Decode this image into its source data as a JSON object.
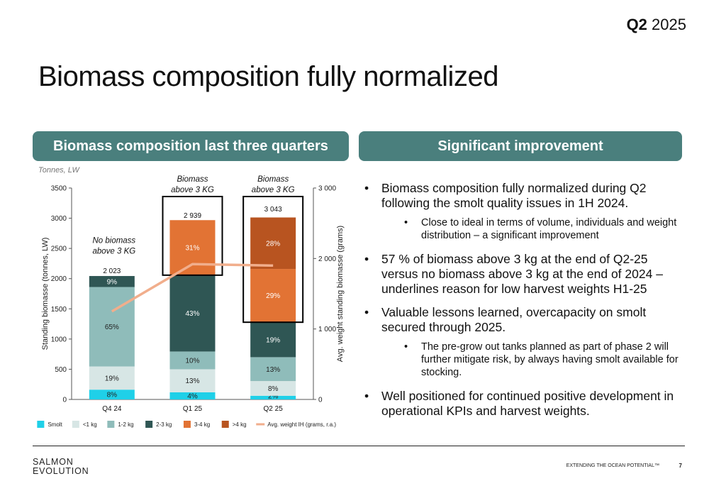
{
  "header": {
    "quarter_bold": "Q2",
    "quarter_year": "2025"
  },
  "title": "Biomass composition fully normalized",
  "left_panel": {
    "heading": "Biomass composition last three quarters",
    "units": "Tonnes, LW"
  },
  "right_panel": {
    "heading": "Significant improvement",
    "bullets": [
      {
        "text": "Biomass composition fully normalized during Q2 following the smolt quality issues in 1H 2024.",
        "sub": [
          "Close to ideal in terms of volume, individuals and weight distribution – a significant improvement"
        ]
      },
      {
        "text": "57 % of biomass above 3 kg at the end of Q2-25 versus no biomass above 3 kg at the end of 2024 – underlines reason for low harvest weights H1-25",
        "sub": []
      },
      {
        "text": "Valuable lessons learned, overcapacity on smolt secured through 2025.",
        "sub": [
          "The pre-grow out tanks planned as part of phase 2 will further mitigate risk, by always having smolt available for stocking."
        ]
      },
      {
        "text": "Well positioned for continued positive development in operational KPIs and harvest weights.",
        "sub": []
      }
    ]
  },
  "chart_data": {
    "type": "bar",
    "stacked": true,
    "categories": [
      "Q4 24",
      "Q1 25",
      "Q2 25"
    ],
    "totals": [
      2023,
      2939,
      3043
    ],
    "total_labels": [
      "2 023",
      "2 939",
      "3 043"
    ],
    "series": [
      {
        "name": "Smolt",
        "color": "#1fd0e8",
        "shares": [
          0.08,
          0.04,
          0.02
        ],
        "labels": [
          "8%",
          "4%",
          "2%"
        ]
      },
      {
        "name": "<1 kg",
        "color": "#d7e6e5",
        "shares": [
          0.19,
          0.13,
          0.08
        ],
        "labels": [
          "19%",
          "13%",
          "8%"
        ]
      },
      {
        "name": "1-2 kg",
        "color": "#8fbcba",
        "shares": [
          0.65,
          0.1,
          0.13
        ],
        "labels": [
          "65%",
          "10%",
          "13%"
        ]
      },
      {
        "name": "2-3 kg",
        "color": "#2f5654",
        "shares": [
          0.09,
          0.43,
          0.19
        ],
        "labels": [
          "9%",
          "43%",
          "19%"
        ]
      },
      {
        "name": "3-4 kg",
        "color": "#e27334",
        "shares": [
          0.0,
          0.31,
          0.29
        ],
        "labels": [
          "",
          "31%",
          "29%"
        ]
      },
      {
        "name": ">4 kg",
        "color": "#b85420",
        "shares": [
          0.0,
          0.0,
          0.28
        ],
        "labels": [
          "",
          "",
          "28%"
        ]
      }
    ],
    "line_series": {
      "name": "Avg. weight IH (grams, r.a.)",
      "color": "#f1ae8c",
      "values": [
        1250,
        1920,
        1900
      ]
    },
    "ylabel": "Standing biomasse (tonnes, LW)",
    "y2label": "Avg. weight standing biomasse (grams)",
    "ylim": [
      0,
      3500
    ],
    "yticks": [
      0,
      500,
      1000,
      1500,
      2000,
      2500,
      3000,
      3500
    ],
    "y2lim": [
      0,
      3000
    ],
    "y2ticks": [
      0,
      1000,
      2000,
      3000
    ],
    "y2tick_labels": [
      "0",
      "1 000",
      "2 000",
      "3 000"
    ],
    "annotations": [
      {
        "category": "Q4 24",
        "text": "No biomass above 3 KG",
        "lines": [
          "No biomass",
          "above 3 KG"
        ]
      },
      {
        "category": "Q1 25",
        "text": "Biomass above 3 KG",
        "lines": [
          "Biomass",
          "above 3 KG"
        ]
      },
      {
        "category": "Q2 25",
        "text": "Biomass above 3 KG",
        "lines": [
          "Biomass",
          "above 3 KG"
        ]
      }
    ],
    "legend_position": "bottom"
  },
  "footer": {
    "logo_line1": "SALMON",
    "logo_line2": "EVOLUTION",
    "tagline": "EXTENDING THE OCEAN POTENTIAL™",
    "page": "7"
  }
}
